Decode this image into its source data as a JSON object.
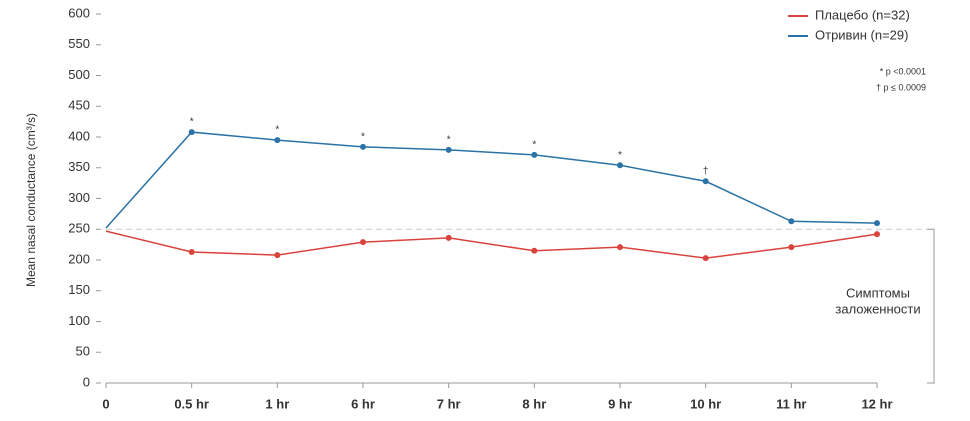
{
  "chart_data": {
    "type": "line",
    "y_label": "Mean nasal conductance (cm³/s)",
    "categories": [
      "0",
      "0.5 hr",
      "1 hr",
      "6 hr",
      "7 hr",
      "8 hr",
      "9 hr",
      "10 hr",
      "11 hr",
      "12 hr"
    ],
    "series": [
      {
        "name": "Плацебо (n=32)",
        "color": "#d8433b",
        "values": [
          247,
          213,
          208,
          229,
          236,
          215,
          221,
          203,
          221,
          242
        ]
      },
      {
        "name": "Отривин (n=29)",
        "color": "#2b72a6",
        "values": [
          252,
          408,
          395,
          384,
          379,
          371,
          354,
          328,
          263,
          260
        ],
        "point_annotations": [
          null,
          "*",
          "*",
          "*",
          "*",
          "*",
          "*",
          "†",
          null,
          null
        ]
      }
    ],
    "ylim": [
      0,
      600
    ],
    "yticks": [
      0,
      50,
      100,
      150,
      200,
      250,
      300,
      350,
      400,
      450,
      500,
      550,
      600
    ],
    "notes": [
      "* p <0.0001",
      "† p ≤ 0.0009"
    ],
    "threshold": 250,
    "threshold_label": [
      "Симптомы",
      "заложенности"
    ],
    "legend": "top-right"
  }
}
